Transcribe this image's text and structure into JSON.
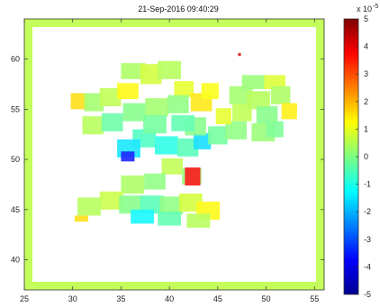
{
  "chart_data": {
    "type": "heatmap",
    "title": "21-Sep-2016 09:40:29",
    "xlim": [
      25,
      56
    ],
    "ylim": [
      37,
      64
    ],
    "x_ticks": [
      "25",
      "30",
      "35",
      "40",
      "45",
      "50",
      "55"
    ],
    "y_ticks": [
      "40",
      "45",
      "50",
      "55",
      "60"
    ],
    "colorbar": {
      "range": [
        -5,
        5
      ],
      "multiplier": "x 10",
      "exponent": "-5",
      "ticks": [
        "5",
        "4",
        "3",
        "2",
        "1",
        "0",
        "-1",
        "-2",
        "-3",
        "-4",
        "-5"
      ]
    },
    "border_value": 0.6,
    "patches": [
      {
        "x": 29.8,
        "y": 55.0,
        "w": 1.8,
        "h": 1.6,
        "v": 1.6
      },
      {
        "x": 31.2,
        "y": 54.8,
        "w": 2.0,
        "h": 1.8,
        "v": 0.3
      },
      {
        "x": 32.8,
        "y": 55.3,
        "w": 2.2,
        "h": 1.8,
        "v": 0.6
      },
      {
        "x": 34.6,
        "y": 56.0,
        "w": 2.2,
        "h": 1.6,
        "v": 1.3
      },
      {
        "x": 35.0,
        "y": 58.0,
        "w": 2.5,
        "h": 1.6,
        "v": 0.4
      },
      {
        "x": 37.0,
        "y": 57.5,
        "w": 2.2,
        "h": 2.0,
        "v": 0.8
      },
      {
        "x": 38.8,
        "y": 58.0,
        "w": 2.4,
        "h": 1.8,
        "v": 0.5
      },
      {
        "x": 40.5,
        "y": 56.2,
        "w": 2.0,
        "h": 1.6,
        "v": 1.0
      },
      {
        "x": 42.2,
        "y": 54.8,
        "w": 2.2,
        "h": 1.8,
        "v": 1.5
      },
      {
        "x": 43.3,
        "y": 56.0,
        "w": 1.8,
        "h": 1.6,
        "v": 1.2
      },
      {
        "x": 31.0,
        "y": 52.5,
        "w": 2.2,
        "h": 1.8,
        "v": 0.5
      },
      {
        "x": 33.0,
        "y": 52.8,
        "w": 2.2,
        "h": 1.8,
        "v": -0.3
      },
      {
        "x": 35.2,
        "y": 53.8,
        "w": 2.4,
        "h": 1.8,
        "v": 0.0
      },
      {
        "x": 37.5,
        "y": 54.3,
        "w": 2.4,
        "h": 1.8,
        "v": 0.3
      },
      {
        "x": 39.8,
        "y": 54.6,
        "w": 2.2,
        "h": 1.8,
        "v": 0.1
      },
      {
        "x": 36.2,
        "y": 51.2,
        "w": 2.4,
        "h": 1.8,
        "v": -0.6
      },
      {
        "x": 34.6,
        "y": 50.2,
        "w": 2.4,
        "h": 1.8,
        "v": -1.5
      },
      {
        "x": 38.5,
        "y": 50.5,
        "w": 2.4,
        "h": 1.8,
        "v": -1.0
      },
      {
        "x": 40.8,
        "y": 50.3,
        "w": 2.2,
        "h": 1.8,
        "v": -0.5
      },
      {
        "x": 42.5,
        "y": 51.0,
        "w": 1.8,
        "h": 1.6,
        "v": -1.6
      },
      {
        "x": 41.6,
        "y": 52.4,
        "w": 2.2,
        "h": 1.8,
        "v": 0.0
      },
      {
        "x": 40.2,
        "y": 52.8,
        "w": 2.4,
        "h": 1.6,
        "v": -0.4
      },
      {
        "x": 37.3,
        "y": 52.6,
        "w": 2.4,
        "h": 1.8,
        "v": -0.2
      },
      {
        "x": 35.0,
        "y": 49.8,
        "w": 1.4,
        "h": 1.0,
        "v": -3.6
      },
      {
        "x": 44.0,
        "y": 51.5,
        "w": 2.0,
        "h": 1.8,
        "v": -0.2
      },
      {
        "x": 45.8,
        "y": 52.0,
        "w": 2.2,
        "h": 1.8,
        "v": 0.1
      },
      {
        "x": 46.5,
        "y": 53.8,
        "w": 2.0,
        "h": 1.8,
        "v": 0.6
      },
      {
        "x": 46.2,
        "y": 55.5,
        "w": 2.4,
        "h": 1.8,
        "v": 0.3
      },
      {
        "x": 48.0,
        "y": 55.0,
        "w": 2.4,
        "h": 1.8,
        "v": 0.5
      },
      {
        "x": 47.5,
        "y": 57.0,
        "w": 2.4,
        "h": 1.4,
        "v": 0.2
      },
      {
        "x": 49.8,
        "y": 57.0,
        "w": 2.2,
        "h": 1.4,
        "v": 0.9
      },
      {
        "x": 49.0,
        "y": 53.5,
        "w": 2.2,
        "h": 1.8,
        "v": 0.0
      },
      {
        "x": 50.5,
        "y": 55.5,
        "w": 2.0,
        "h": 1.8,
        "v": 0.4
      },
      {
        "x": 51.6,
        "y": 54.0,
        "w": 1.6,
        "h": 1.6,
        "v": 1.4
      },
      {
        "x": 48.5,
        "y": 51.8,
        "w": 2.4,
        "h": 1.8,
        "v": 0.2
      },
      {
        "x": 50.0,
        "y": 52.2,
        "w": 1.8,
        "h": 1.6,
        "v": -0.1
      },
      {
        "x": 44.8,
        "y": 53.5,
        "w": 1.6,
        "h": 1.6,
        "v": 1.0
      },
      {
        "x": 39.2,
        "y": 48.5,
        "w": 2.2,
        "h": 1.6,
        "v": 0.6
      },
      {
        "x": 41.3,
        "y": 47.5,
        "w": 2.0,
        "h": 1.6,
        "v": 0.2
      },
      {
        "x": 41.6,
        "y": 47.4,
        "w": 1.6,
        "h": 1.8,
        "v": 3.8
      },
      {
        "x": 37.4,
        "y": 47.0,
        "w": 2.2,
        "h": 1.6,
        "v": 0.1
      },
      {
        "x": 35.0,
        "y": 46.6,
        "w": 2.4,
        "h": 1.8,
        "v": 0.4
      },
      {
        "x": 32.8,
        "y": 45.0,
        "w": 2.4,
        "h": 1.8,
        "v": 0.7
      },
      {
        "x": 30.5,
        "y": 44.4,
        "w": 2.4,
        "h": 1.8,
        "v": 0.5
      },
      {
        "x": 34.8,
        "y": 44.6,
        "w": 2.4,
        "h": 1.8,
        "v": 0.0
      },
      {
        "x": 37.0,
        "y": 44.6,
        "w": 2.4,
        "h": 1.8,
        "v": -0.5
      },
      {
        "x": 39.0,
        "y": 44.5,
        "w": 2.4,
        "h": 1.8,
        "v": 0.1
      },
      {
        "x": 41.0,
        "y": 44.8,
        "w": 2.4,
        "h": 1.8,
        "v": 0.8
      },
      {
        "x": 42.8,
        "y": 44.0,
        "w": 2.4,
        "h": 1.8,
        "v": 1.3
      },
      {
        "x": 36.0,
        "y": 43.6,
        "w": 2.4,
        "h": 1.4,
        "v": -1.3
      },
      {
        "x": 38.8,
        "y": 43.4,
        "w": 2.4,
        "h": 1.4,
        "v": -0.4
      },
      {
        "x": 41.8,
        "y": 43.2,
        "w": 2.4,
        "h": 1.4,
        "v": 0.5
      },
      {
        "x": 30.2,
        "y": 43.8,
        "w": 1.4,
        "h": 0.6,
        "v": 1.6
      },
      {
        "x": 47.1,
        "y": 60.3,
        "w": 0.3,
        "h": 0.3,
        "v": 4.2
      }
    ]
  }
}
